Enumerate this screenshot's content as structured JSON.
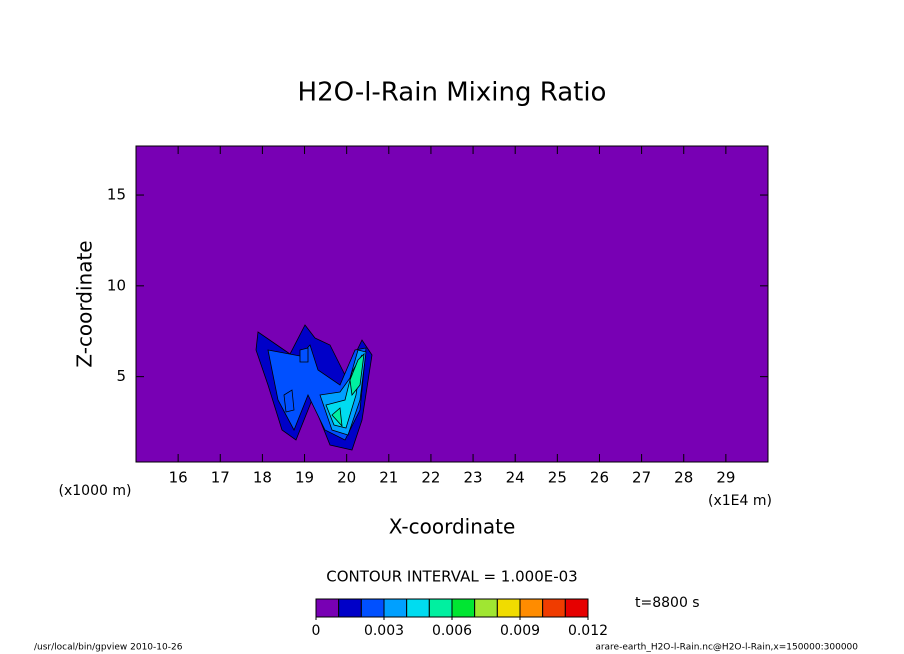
{
  "chart_data": {
    "type": "contour",
    "title": "H2O-l-Rain Mixing Ratio",
    "x_label": "X-coordinate",
    "y_label": "Z-coordinate",
    "x_unit": "(x1E4 m)",
    "y_unit": "(x1000 m)",
    "xlim": [
      15,
      30
    ],
    "xticks": [
      16,
      17,
      18,
      19,
      20,
      21,
      22,
      23,
      24,
      25,
      26,
      27,
      28,
      29
    ],
    "ylim": [
      0.3,
      17.7
    ],
    "yticks": [
      5,
      10,
      15
    ],
    "background_color": "#7800b4",
    "contour_interval": "CONTOUR INTERVAL = 1.000E-03",
    "colorbar": {
      "colors": [
        "#7800b4",
        "#0000c8",
        "#0050ff",
        "#00a0ff",
        "#00dcf0",
        "#00f0a0",
        "#00e632",
        "#a0e632",
        "#f0dc00",
        "#ff8c00",
        "#f03c00",
        "#e60000",
        "#ffa0a0"
      ],
      "lim": [
        0,
        0.012
      ],
      "ticks": [
        0,
        0.003,
        0.006,
        0.009,
        0.012
      ]
    },
    "time_label": "t=8800 s",
    "footer_left": "/usr/local/bin/gpview  2010-10-26",
    "footer_right": "arare-earth_H2O-l-Rain.nc@H2O-l-Rain,x=150000:300000"
  }
}
